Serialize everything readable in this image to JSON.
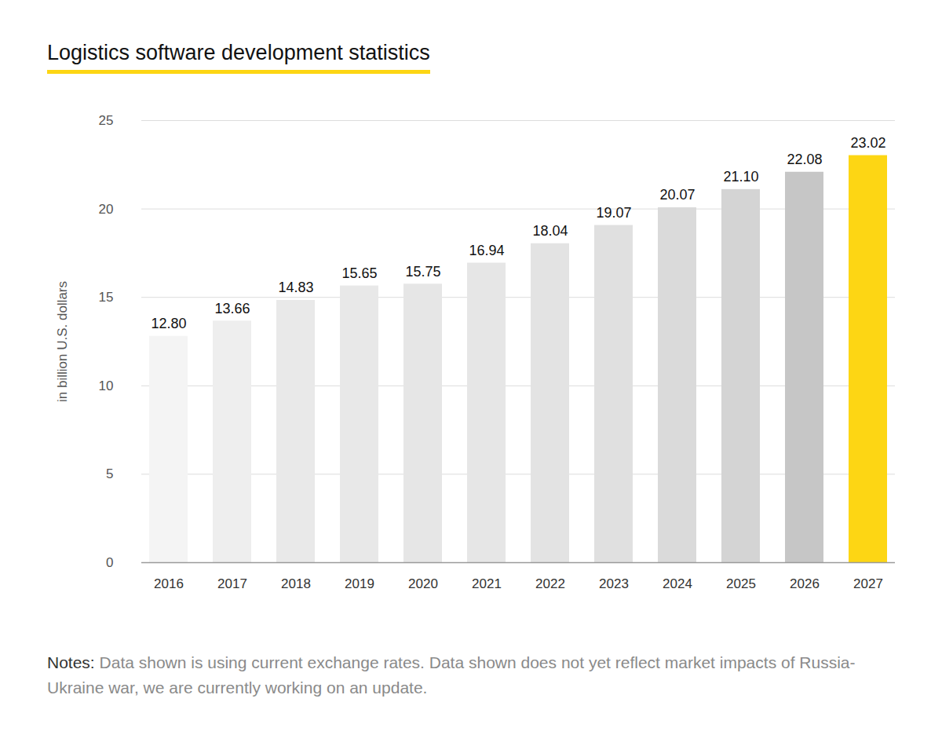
{
  "chart_data": {
    "type": "bar",
    "title": "Logistics software development statistics",
    "y_label": "in billion U.S. dollars",
    "categories": [
      "2016",
      "2017",
      "2018",
      "2019",
      "2020",
      "2021",
      "2022",
      "2023",
      "2024",
      "2025",
      "2026",
      "2027"
    ],
    "values": [
      12.8,
      13.66,
      14.83,
      15.65,
      15.75,
      16.94,
      18.04,
      19.07,
      20.07,
      21.1,
      22.08,
      23.02
    ],
    "value_labels": [
      "12.80",
      "13.66",
      "14.83",
      "15.65",
      "15.75",
      "16.94",
      "18.04",
      "19.07",
      "20.07",
      "21.10",
      "22.08",
      "23.02"
    ],
    "colors": [
      "#f4f4f4",
      "#eeeeee",
      "#e9e9e9",
      "#e8e8e8",
      "#e6e6e6",
      "#e6e6e6",
      "#e3e3e3",
      "#e0e0e0",
      "#dadada",
      "#d4d4d4",
      "#c6c6c6",
      "#fdd614"
    ],
    "ylim": [
      0,
      25
    ],
    "yticks": [
      0,
      5,
      10,
      15,
      20,
      25
    ],
    "grid": true,
    "data_labels": true,
    "note": {
      "label": "Notes:",
      "text": "Data shown is using current exchange rates. Data shown does not yet reflect market impacts of Russia-Ukraine war, we are currently working on an update."
    }
  }
}
